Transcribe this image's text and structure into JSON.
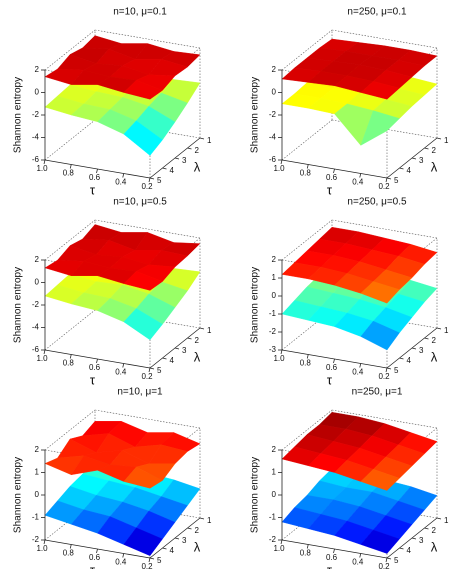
{
  "chart_data": [
    {
      "type": "surface",
      "title": "n=10, μ=0.1",
      "xlabel": "τ",
      "ylabel": "λ",
      "zlabel": "Shannon entropy",
      "colormap": "jet",
      "x": [
        1,
        0.8,
        0.6,
        0.4,
        0.2
      ],
      "y": [
        1,
        2,
        3,
        4,
        5
      ],
      "xlim": [
        1,
        0.2
      ],
      "ylim": [
        1,
        5
      ],
      "zlim": [
        -6,
        2
      ],
      "xticks": [
        {
          "value": 1,
          "label": "1.0"
        },
        0.8,
        0.6,
        0.4,
        0.2
      ],
      "yticks": [
        1,
        2,
        3,
        4,
        5
      ],
      "zticks": [
        2,
        0,
        -2,
        -4,
        -6
      ],
      "surfaces": [
        {
          "values": [
            [
              -0.8,
              -1.0,
              -0.9,
              -1.2,
              -1.1
            ],
            [
              -1.0,
              -1.2,
              -1.1,
              -1.5,
              -2.0
            ],
            [
              -1.1,
              -1.3,
              -1.4,
              -1.8,
              -2.8
            ],
            [
              -1.2,
              -1.5,
              -1.6,
              -2.2,
              -3.5
            ],
            [
              -1.3,
              -1.6,
              -1.8,
              -2.5,
              -4.0
            ]
          ]
        },
        {
          "values": [
            [
              1.5,
              1.2,
              1.6,
              1.3,
              1.4
            ],
            [
              1.3,
              1.6,
              1.1,
              1.5,
              1.2
            ],
            [
              1.6,
              1.2,
              1.4,
              1.0,
              1.3
            ],
            [
              1.2,
              1.5,
              1.3,
              1.4,
              0.9
            ],
            [
              1.4,
              1.1,
              1.5,
              1.2,
              1.0
            ]
          ]
        }
      ]
    },
    {
      "type": "surface",
      "title": "n=250, μ=0.1",
      "xlabel": "τ",
      "ylabel": "λ",
      "zlabel": "Shannon entropy",
      "colormap": "jet",
      "x": [
        1,
        0.8,
        0.6,
        0.4,
        0.2
      ],
      "y": [
        1,
        2,
        3,
        4,
        5
      ],
      "xlim": [
        1,
        0.2
      ],
      "ylim": [
        1,
        5
      ],
      "zlim": [
        -6,
        2
      ],
      "xticks": [
        {
          "value": 1,
          "label": "1.0"
        },
        0.8,
        0.6,
        0.4,
        0.2
      ],
      "yticks": [
        1,
        2,
        3,
        4,
        5
      ],
      "zticks": [
        2,
        0,
        -2,
        -4,
        -6
      ],
      "surfaces": [
        {
          "values": [
            [
              -0.8,
              -0.8,
              -0.9,
              -1.0,
              -1.2
            ],
            [
              -0.9,
              -0.9,
              -1.0,
              -1.1,
              -1.3
            ],
            [
              -0.9,
              -1.0,
              -1.0,
              -1.2,
              -1.4
            ],
            [
              -1.0,
              -1.0,
              -1.1,
              -1.3,
              -1.6
            ],
            [
              -1.0,
              -1.0,
              -1.1,
              -3.5,
              -1.8
            ]
          ]
        },
        {
          "values": [
            [
              1.2,
              1.3,
              1.4,
              1.4,
              1.3
            ],
            [
              1.3,
              1.4,
              1.4,
              1.4,
              1.3
            ],
            [
              1.3,
              1.4,
              1.5,
              1.4,
              1.2
            ],
            [
              1.3,
              1.4,
              1.4,
              1.3,
              1.1
            ],
            [
              1.2,
              1.3,
              1.4,
              1.2,
              1.0
            ]
          ]
        }
      ]
    },
    {
      "type": "surface",
      "title": "n=10, μ=0.5",
      "xlabel": "τ",
      "ylabel": "λ",
      "zlabel": "Shannon entropy",
      "colormap": "jet",
      "x": [
        1,
        0.8,
        0.6,
        0.4,
        0.2
      ],
      "y": [
        1,
        2,
        3,
        4,
        5
      ],
      "xlim": [
        1,
        0.2
      ],
      "ylim": [
        1,
        5
      ],
      "zlim": [
        -6,
        2
      ],
      "xticks": [
        {
          "value": 1,
          "label": "1.0"
        },
        0.8,
        0.6,
        0.4,
        0.2
      ],
      "yticks": [
        1,
        2,
        3,
        4,
        5
      ],
      "zticks": [
        2,
        0,
        -2,
        -4,
        -6
      ],
      "surfaces": [
        {
          "values": [
            [
              -0.6,
              -0.9,
              -0.7,
              -1.1,
              -1.0
            ],
            [
              -0.9,
              -1.1,
              -1.0,
              -1.4,
              -1.8
            ],
            [
              -1.0,
              -1.3,
              -1.2,
              -1.6,
              -2.4
            ],
            [
              -1.1,
              -1.4,
              -1.5,
              -2.0,
              -3.0
            ],
            [
              -1.2,
              -1.5,
              -1.7,
              -2.3,
              -3.5
            ]
          ]
        },
        {
          "values": [
            [
              1.6,
              1.3,
              1.7,
              1.2,
              1.5
            ],
            [
              1.2,
              1.5,
              1.0,
              1.4,
              1.3
            ],
            [
              1.5,
              1.1,
              1.3,
              1.0,
              1.2
            ],
            [
              1.1,
              1.4,
              1.2,
              1.3,
              0.8
            ],
            [
              1.3,
              1.0,
              1.4,
              1.1,
              0.9
            ]
          ]
        }
      ]
    },
    {
      "type": "surface",
      "title": "n=250, μ=0.5",
      "xlabel": "τ",
      "ylabel": "λ",
      "zlabel": "Shannon entropy",
      "colormap": "jet",
      "x": [
        1,
        0.8,
        0.6,
        0.4,
        0.2
      ],
      "y": [
        1,
        2,
        3,
        4,
        5
      ],
      "xlim": [
        1,
        0.2
      ],
      "ylim": [
        1,
        5
      ],
      "zlim": [
        -3,
        2
      ],
      "xticks": [
        {
          "value": 1,
          "label": "1.0"
        },
        0.8,
        0.6,
        0.4,
        0.2
      ],
      "yticks": [
        1,
        2,
        3,
        4,
        5
      ],
      "zticks": [
        2,
        1,
        0,
        -1,
        -2,
        -3
      ],
      "surfaces": [
        {
          "values": [
            [
              -0.4,
              -0.4,
              -0.5,
              -0.6,
              -0.8
            ],
            [
              -0.5,
              -0.5,
              -0.6,
              -0.8,
              -1.0
            ],
            [
              -0.6,
              -0.7,
              -0.8,
              -1.0,
              -1.3
            ],
            [
              -0.8,
              -0.9,
              -1.0,
              -1.2,
              -1.6
            ],
            [
              -1.0,
              -1.1,
              -1.2,
              -1.5,
              -2.0
            ]
          ]
        },
        {
          "values": [
            [
              1.6,
              1.6,
              1.5,
              1.4,
              1.2
            ],
            [
              1.5,
              1.5,
              1.4,
              1.3,
              1.1
            ],
            [
              1.4,
              1.4,
              1.3,
              1.1,
              0.9
            ],
            [
              1.3,
              1.3,
              1.2,
              1.0,
              0.8
            ],
            [
              1.2,
              1.2,
              1.1,
              0.9,
              0.6
            ]
          ]
        }
      ]
    },
    {
      "type": "surface",
      "title": "n=10, μ=1",
      "xlabel": "τ",
      "ylabel": "λ",
      "zlabel": "Shannon entropy",
      "colormap": "jet",
      "x": [
        1,
        0.8,
        0.6,
        0.4,
        0.2
      ],
      "y": [
        1,
        2,
        3,
        4,
        5
      ],
      "xlim": [
        1,
        0.2
      ],
      "ylim": [
        1,
        5
      ],
      "zlim": [
        -2,
        2
      ],
      "xticks": [
        {
          "value": 1,
          "label": "1.0"
        },
        0.8,
        0.6,
        0.4,
        0.2
      ],
      "yticks": [
        1,
        2,
        3,
        4,
        5
      ],
      "zticks": [
        2,
        1,
        0,
        -1,
        -2
      ],
      "surfaces": [
        {
          "values": [
            [
              -0.2,
              -0.3,
              -0.4,
              -0.5,
              -0.7
            ],
            [
              -0.4,
              -0.5,
              -0.6,
              -0.8,
              -1.0
            ],
            [
              -0.5,
              -0.7,
              -0.8,
              -1.0,
              -1.3
            ],
            [
              -0.7,
              -0.9,
              -1.0,
              -1.3,
              -1.6
            ],
            [
              -0.9,
              -1.1,
              -1.3,
              -1.6,
              -1.9
            ]
          ]
        },
        {
          "values": [
            [
              1.5,
              1.7,
              1.4,
              1.6,
              1.3
            ],
            [
              1.3,
              1.6,
              1.2,
              1.5,
              1.4
            ],
            [
              1.6,
              1.2,
              1.5,
              1.1,
              1.3
            ],
            [
              1.2,
              1.5,
              1.3,
              1.4,
              1.0
            ],
            [
              1.4,
              1.1,
              1.5,
              1.2,
              1.1
            ]
          ]
        }
      ]
    },
    {
      "type": "surface",
      "title": "n=250, μ=1",
      "xlabel": "τ",
      "ylabel": "λ",
      "zlabel": "Shannon entropy",
      "colormap": "jet",
      "x": [
        1,
        0.8,
        0.6,
        0.4,
        0.2
      ],
      "y": [
        1,
        2,
        3,
        4,
        5
      ],
      "xlim": [
        1,
        0.2
      ],
      "ylim": [
        1,
        5
      ],
      "zlim": [
        -2,
        2
      ],
      "xticks": [
        {
          "value": 1,
          "label": "1.0"
        },
        0.8,
        0.6,
        0.4,
        0.2
      ],
      "yticks": [
        1,
        2,
        3,
        4,
        5
      ],
      "zticks": [
        2,
        1,
        0,
        -1,
        -2
      ],
      "surfaces": [
        {
          "values": [
            [
              -0.6,
              -0.6,
              -0.7,
              -0.8,
              -1.0
            ],
            [
              -0.7,
              -0.8,
              -0.8,
              -1.0,
              -1.2
            ],
            [
              -0.9,
              -0.9,
              -1.0,
              -1.2,
              -1.4
            ],
            [
              -1.0,
              -1.1,
              -1.2,
              -1.4,
              -1.6
            ],
            [
              -1.2,
              -1.3,
              -1.4,
              -1.6,
              -1.8
            ]
          ]
        },
        {
          "values": [
            [
              1.9,
              1.9,
              1.8,
              1.6,
              1.4
            ],
            [
              1.8,
              1.8,
              1.7,
              1.5,
              1.3
            ],
            [
              1.8,
              1.7,
              1.6,
              1.4,
              1.2
            ],
            [
              1.7,
              1.6,
              1.5,
              1.3,
              1.1
            ],
            [
              1.6,
              1.5,
              1.4,
              1.2,
              1.0
            ]
          ]
        }
      ]
    }
  ]
}
